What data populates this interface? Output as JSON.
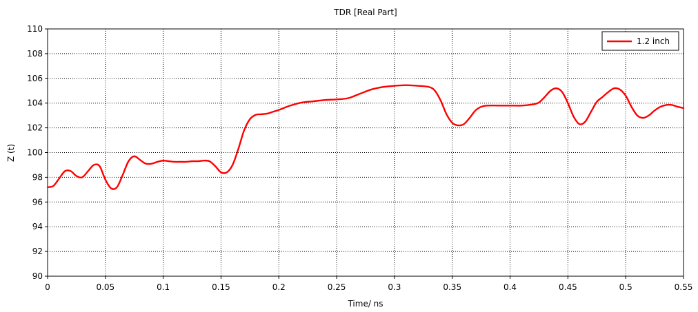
{
  "chart_data": {
    "type": "line",
    "title": "TDR [Real Part]",
    "xlabel": "Time/ ns",
    "ylabel": "Z (t)",
    "xlim": [
      0,
      0.55
    ],
    "ylim": [
      90,
      110
    ],
    "x_ticks": [
      "0",
      "0.05",
      "0.1",
      "0.15",
      "0.2",
      "0.25",
      "0.3",
      "0.35",
      "0.4",
      "0.45",
      "0.5",
      "0.55"
    ],
    "y_ticks": [
      "90",
      "92",
      "94",
      "96",
      "98",
      "100",
      "102",
      "104",
      "106",
      "108",
      "110"
    ],
    "grid": true,
    "legend_position": "top-right",
    "series": [
      {
        "name": "1.2 inch",
        "color": "#ff0000",
        "x": [
          0,
          0.005,
          0.01,
          0.015,
          0.02,
          0.025,
          0.03,
          0.035,
          0.04,
          0.045,
          0.05,
          0.055,
          0.06,
          0.065,
          0.07,
          0.075,
          0.08,
          0.085,
          0.09,
          0.095,
          0.1,
          0.105,
          0.11,
          0.115,
          0.12,
          0.125,
          0.13,
          0.135,
          0.14,
          0.145,
          0.15,
          0.155,
          0.16,
          0.165,
          0.17,
          0.175,
          0.18,
          0.185,
          0.19,
          0.195,
          0.2,
          0.21,
          0.22,
          0.23,
          0.24,
          0.25,
          0.26,
          0.27,
          0.28,
          0.29,
          0.3,
          0.31,
          0.32,
          0.33,
          0.335,
          0.34,
          0.345,
          0.35,
          0.355,
          0.36,
          0.365,
          0.37,
          0.375,
          0.38,
          0.39,
          0.4,
          0.41,
          0.42,
          0.425,
          0.43,
          0.435,
          0.44,
          0.445,
          0.45,
          0.455,
          0.46,
          0.465,
          0.47,
          0.475,
          0.48,
          0.485,
          0.49,
          0.495,
          0.5,
          0.505,
          0.51,
          0.515,
          0.52,
          0.525,
          0.53,
          0.535,
          0.54,
          0.545,
          0.55
        ],
        "y": [
          97.2,
          97.3,
          97.9,
          98.5,
          98.5,
          98.1,
          98.0,
          98.5,
          99.0,
          98.9,
          97.8,
          97.1,
          97.2,
          98.2,
          99.3,
          99.7,
          99.4,
          99.1,
          99.1,
          99.25,
          99.35,
          99.3,
          99.25,
          99.25,
          99.25,
          99.3,
          99.3,
          99.35,
          99.3,
          98.9,
          98.4,
          98.4,
          99.0,
          100.3,
          101.8,
          102.7,
          103.05,
          103.1,
          103.15,
          103.3,
          103.45,
          103.8,
          104.05,
          104.15,
          104.25,
          104.3,
          104.4,
          104.75,
          105.1,
          105.3,
          105.4,
          105.45,
          105.4,
          105.3,
          105.0,
          104.2,
          103.1,
          102.4,
          102.2,
          102.3,
          102.8,
          103.4,
          103.7,
          103.8,
          103.8,
          103.8,
          103.8,
          103.9,
          104.05,
          104.5,
          105.0,
          105.2,
          104.9,
          104.0,
          102.9,
          102.3,
          102.5,
          103.3,
          104.1,
          104.5,
          104.9,
          105.2,
          105.1,
          104.6,
          103.7,
          103.0,
          102.8,
          103.0,
          103.4,
          103.7,
          103.85,
          103.85,
          103.7,
          103.6
        ]
      }
    ]
  }
}
